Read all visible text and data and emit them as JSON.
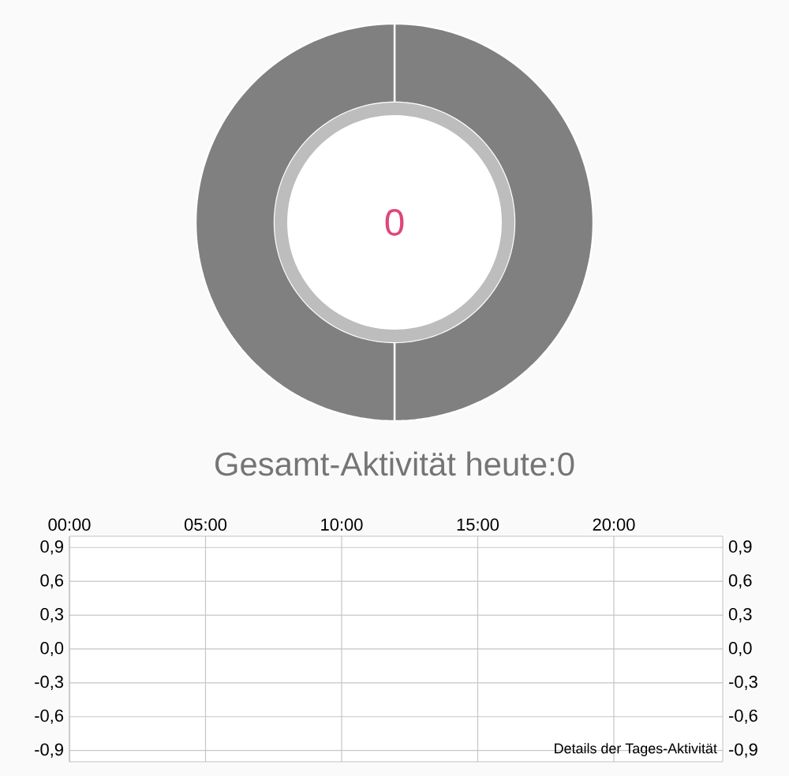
{
  "chart_data": [
    {
      "type": "donut",
      "title": "Gesamt-Aktivität heute:0",
      "categories": [
        null,
        null
      ],
      "values": [
        50,
        50
      ],
      "colors": [
        "#808080",
        "#808080"
      ],
      "annotations": [
        "0"
      ]
    },
    {
      "type": "line",
      "xlim": [
        0,
        24
      ],
      "xticks": [
        {
          "value": 0,
          "label": "00:00"
        },
        {
          "value": 5,
          "label": "05:00"
        },
        {
          "value": 10,
          "label": "10:00"
        },
        {
          "value": 15,
          "label": "15:00"
        },
        {
          "value": 20,
          "label": "20:00"
        }
      ],
      "ylim": [
        -1,
        1
      ],
      "yticks": [
        {
          "value": -0.9,
          "label": "-0,9"
        },
        {
          "value": -0.6,
          "label": "-0,6"
        },
        {
          "value": -0.3,
          "label": "-0,3"
        },
        {
          "value": 0,
          "label": "0,0"
        },
        {
          "value": 0.3,
          "label": "0,3"
        },
        {
          "value": 0.6,
          "label": "0,6"
        },
        {
          "value": 0.9,
          "label": "0,9"
        }
      ],
      "y2lim": [
        -1,
        1
      ],
      "y2ticks": [
        {
          "value": -0.9,
          "label": "-0,9"
        },
        {
          "value": -0.6,
          "label": "-0,6"
        },
        {
          "value": -0.3,
          "label": "-0,3"
        },
        {
          "value": 0,
          "label": "0,0"
        },
        {
          "value": 0.3,
          "label": "0,3"
        },
        {
          "value": 0.6,
          "label": "0,6"
        },
        {
          "value": 0.9,
          "label": "0,9"
        }
      ],
      "grid": true,
      "annotations": [
        "Details der Tages-Aktivität"
      ]
    }
  ]
}
